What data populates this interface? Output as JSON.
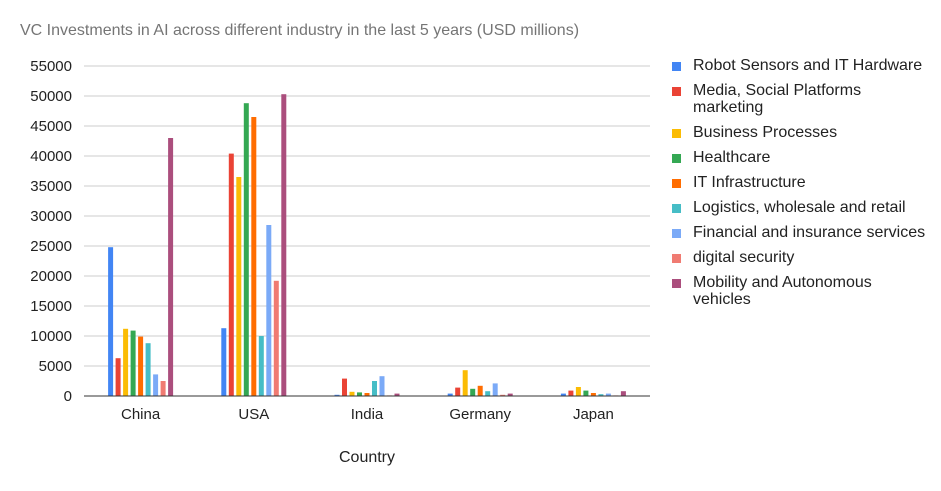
{
  "chart_data": {
    "type": "bar",
    "title": "VC Investments in AI across different industry in the last 5 years (USD millions)",
    "xlabel": "Country",
    "ylabel": "",
    "categories": [
      "China",
      "USA",
      "India",
      "Germany",
      "Japan"
    ],
    "ylim": [
      0,
      55000
    ],
    "yticks": [
      0,
      5000,
      10000,
      15000,
      20000,
      25000,
      30000,
      35000,
      40000,
      45000,
      50000,
      55000
    ],
    "grid": true,
    "legend_position": "right",
    "series": [
      {
        "name": "Robot Sensors and IT Hardware",
        "color": "#4285F4",
        "values": [
          24800,
          11300,
          200,
          400,
          400
        ]
      },
      {
        "name": "Media, Social Platforms marketing",
        "color": "#EA4335",
        "values": [
          6300,
          40400,
          2900,
          1400,
          900
        ]
      },
      {
        "name": "Business Processes",
        "color": "#FBBC04",
        "values": [
          11200,
          36500,
          700,
          4300,
          1500
        ]
      },
      {
        "name": "Healthcare",
        "color": "#34A853",
        "values": [
          10900,
          48800,
          600,
          1200,
          900
        ]
      },
      {
        "name": "IT Infrastructure",
        "color": "#FF6D01",
        "values": [
          9900,
          46500,
          500,
          1700,
          500
        ]
      },
      {
        "name": "Logistics, wholesale and retail",
        "color": "#46BDC6",
        "values": [
          8800,
          10000,
          2500,
          800,
          300
        ]
      },
      {
        "name": "Financial and insurance services",
        "color": "#7BAAF7",
        "values": [
          3600,
          28500,
          3300,
          2100,
          400
        ]
      },
      {
        "name": "digital security",
        "color": "#F07B72",
        "values": [
          2500,
          19200,
          100,
          200,
          100
        ]
      },
      {
        "name": "Mobility and Autonomous vehicles",
        "color": "#AB4E7D",
        "values": [
          43000,
          50300,
          400,
          400,
          800
        ]
      }
    ]
  }
}
